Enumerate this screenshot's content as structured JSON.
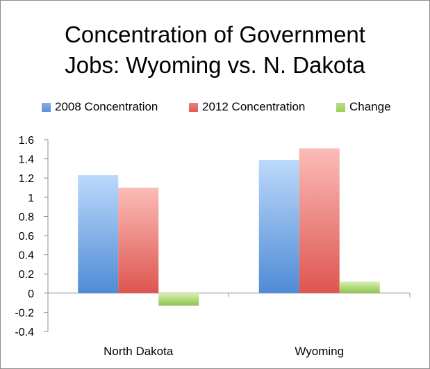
{
  "chart_data": {
    "type": "bar",
    "title_lines": [
      "Concentration of Government",
      "Jobs: Wyoming vs. N. Dakota"
    ],
    "categories": [
      "North Dakota",
      "Wyoming"
    ],
    "series": [
      {
        "name": "2008 Concentration",
        "values": [
          1.23,
          1.39
        ],
        "color": "#5b93d8"
      },
      {
        "name": "2012 Concentration",
        "values": [
          1.1,
          1.51
        ],
        "color": "#e05a55"
      },
      {
        "name": "Change",
        "values": [
          -0.13,
          0.12
        ],
        "color": "#9fcf5c"
      }
    ],
    "ylim": [
      -0.4,
      1.6
    ],
    "yticks": [
      "-0.4",
      "-0.2",
      "0",
      "0.2",
      "0.4",
      "0.6",
      "0.8",
      "1",
      "1.2",
      "1.4",
      "1.6"
    ],
    "grid": false,
    "legend_position": "top"
  }
}
